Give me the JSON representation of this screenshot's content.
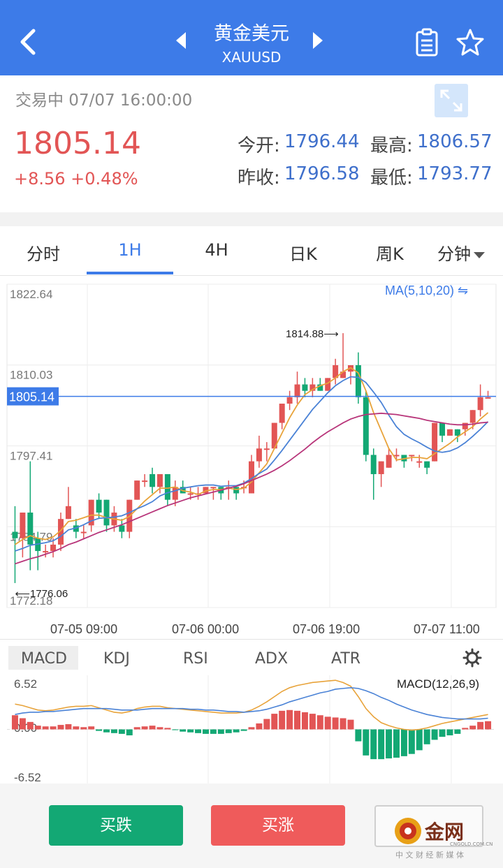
{
  "header": {
    "title": "黄金美元",
    "symbol": "XAUUSD"
  },
  "quote": {
    "status": "交易中 07/07 16:00:00",
    "price": "1805.14",
    "change": "+8.56 +0.48%",
    "open_label": "今开:",
    "open": "1796.44",
    "high_label": "最高:",
    "high": "1806.57",
    "prev_label": "昨收:",
    "prev": "1796.58",
    "low_label": "最低:",
    "low": "1793.77"
  },
  "tabs": [
    "分时",
    "1H",
    "4H",
    "日K",
    "周K",
    "分钟"
  ],
  "active_tab": "1H",
  "indicators": [
    "MACD",
    "KDJ",
    "RSI",
    "ADX",
    "ATR"
  ],
  "active_indicator": "MACD",
  "actions": {
    "sell": "买跌",
    "buy": "买涨"
  },
  "logo": {
    "text": "金网",
    "sub": "中 文 财 经 新 媒 体",
    "url": "CNGOLD.COM.CN"
  },
  "colors": {
    "up": "#e25555",
    "down": "#13a874",
    "accent": "#3d7be8",
    "ma5": "#e8a33a",
    "ma10": "#4a82d6",
    "ma20": "#b8357a"
  },
  "chart_data": {
    "type": "candlestick",
    "ma_label": "MA(5,10,20)",
    "price_axis": [
      "1822.64",
      "1810.03",
      "1797.41",
      "1784.79",
      "1772.18"
    ],
    "ylim": [
      1772.18,
      1822.64
    ],
    "last_price": "1805.14",
    "high_marker": "1814.88",
    "low_marker": "1776.06",
    "x_ticks": [
      "07-05 09:00",
      "07-06 00:00",
      "07-06 19:00",
      "07-07 11:00"
    ],
    "candles": [
      [
        1784,
        1783,
        1788,
        1776
      ],
      [
        1783,
        1787,
        1787,
        1780
      ],
      [
        1787,
        1782,
        1795,
        1778
      ],
      [
        1783,
        1781,
        1784,
        1778
      ],
      [
        1781,
        1781,
        1782,
        1780
      ],
      [
        1781,
        1782,
        1783,
        1780
      ],
      [
        1782,
        1786,
        1787,
        1781
      ],
      [
        1786,
        1788,
        1791,
        1786
      ],
      [
        1785,
        1784,
        1786,
        1783
      ],
      [
        1784,
        1784,
        1785,
        1783
      ],
      [
        1785,
        1789,
        1789,
        1784
      ],
      [
        1789,
        1787,
        1790,
        1786
      ],
      [
        1789,
        1785,
        1789,
        1784
      ],
      [
        1785,
        1787,
        1788,
        1784
      ],
      [
        1785,
        1784,
        1786,
        1783
      ],
      [
        1784,
        1789,
        1789,
        1783
      ],
      [
        1789,
        1792,
        1792,
        1789
      ],
      [
        1792,
        1792,
        1793,
        1791
      ],
      [
        1793,
        1791,
        1794,
        1790
      ],
      [
        1791,
        1793,
        1793,
        1790
      ],
      [
        1793,
        1789,
        1793,
        1788
      ],
      [
        1789,
        1791,
        1792,
        1788
      ],
      [
        1791,
        1790,
        1792,
        1790
      ],
      [
        1790,
        1790,
        1791,
        1789
      ],
      [
        1790,
        1790,
        1791,
        1789
      ],
      [
        1790,
        1791,
        1791,
        1790
      ],
      [
        1791,
        1791,
        1791,
        1789
      ],
      [
        1791,
        1790,
        1791,
        1789
      ],
      [
        1791,
        1791,
        1792,
        1789
      ],
      [
        1791,
        1790,
        1791,
        1789
      ],
      [
        1791,
        1791,
        1792,
        1790
      ],
      [
        1790,
        1795,
        1796,
        1790
      ],
      [
        1795,
        1797,
        1799,
        1794
      ],
      [
        1797,
        1797,
        1798,
        1795
      ],
      [
        1797,
        1801,
        1801,
        1797
      ],
      [
        1801,
        1804,
        1804,
        1800
      ],
      [
        1804,
        1805,
        1806,
        1803
      ],
      [
        1805,
        1807,
        1809,
        1804
      ],
      [
        1807,
        1806,
        1808,
        1805
      ],
      [
        1806,
        1807,
        1808,
        1805
      ],
      [
        1807,
        1806,
        1808,
        1806
      ],
      [
        1806,
        1808,
        1808,
        1806
      ],
      [
        1808,
        1810,
        1811,
        1807
      ],
      [
        1808,
        1809,
        1815,
        1808
      ],
      [
        1809,
        1810,
        1810,
        1807
      ],
      [
        1810,
        1805,
        1812,
        1804
      ],
      [
        1805,
        1796,
        1806,
        1795
      ],
      [
        1796,
        1793,
        1797,
        1789
      ],
      [
        1793,
        1795,
        1795,
        1791
      ],
      [
        1794,
        1796,
        1797,
        1794
      ],
      [
        1796,
        1796,
        1797,
        1795
      ],
      [
        1796,
        1795,
        1796,
        1794
      ],
      [
        1796,
        1796,
        1796,
        1795
      ],
      [
        1795,
        1795,
        1796,
        1794
      ],
      [
        1795,
        1794,
        1795,
        1793
      ],
      [
        1795,
        1801,
        1801,
        1795
      ],
      [
        1801,
        1799,
        1801,
        1798
      ],
      [
        1799,
        1800,
        1800,
        1799
      ],
      [
        1800,
        1799,
        1800,
        1798
      ],
      [
        1800,
        1801,
        1801,
        1799
      ],
      [
        1801,
        1803,
        1803,
        1800
      ],
      [
        1803,
        1805,
        1807,
        1802
      ],
      [
        1805,
        1805,
        1806,
        1805
      ]
    ],
    "ma5": [
      1782,
      1782.8,
      1783.4,
      1783,
      1782.8,
      1783.2,
      1784.2,
      1785.6,
      1785.8,
      1786.2,
      1786.6,
      1786.6,
      1786.2,
      1786,
      1785.8,
      1786.4,
      1787.6,
      1788.8,
      1789.8,
      1790.8,
      1790.8,
      1791,
      1790.4,
      1790.2,
      1789.8,
      1790.4,
      1790.6,
      1790.6,
      1790.8,
      1790.6,
      1790.8,
      1791.8,
      1793.2,
      1794.6,
      1797,
      1799.4,
      1801.8,
      1803.8,
      1805.4,
      1806.2,
      1806.8,
      1807.2,
      1808,
      1809,
      1809.6,
      1808.8,
      1806,
      1802.6,
      1799.8,
      1797,
      1795.2,
      1795.4,
      1795.6,
      1795.6,
      1795.4,
      1796.2,
      1797,
      1797.8,
      1798.8,
      1799.6,
      1800.4,
      1801.6,
      1802.6
    ],
    "ma10": [
      1781,
      1781.4,
      1781.9,
      1782.1,
      1782.3,
      1782.6,
      1783.3,
      1784.3,
      1784.6,
      1785.1,
      1785.7,
      1786.1,
      1786.2,
      1786.3,
      1786.5,
      1787,
      1787.6,
      1788.1,
      1788.7,
      1789.6,
      1790.1,
      1790.4,
      1790.8,
      1791,
      1791.2,
      1791.3,
      1791.3,
      1791.1,
      1791.2,
      1791.2,
      1791.6,
      1792.3,
      1793.1,
      1793.8,
      1795.2,
      1796.7,
      1798.3,
      1799.9,
      1801.5,
      1803.1,
      1804.4,
      1805.7,
      1806.8,
      1807.6,
      1808.2,
      1808.1,
      1807.3,
      1805.8,
      1804.2,
      1802.2,
      1800.4,
      1799.2,
      1798.5,
      1797.9,
      1797.2,
      1796.6,
      1796.4,
      1796.6,
      1797.1,
      1797.9,
      1798.9,
      1800,
      1801.2
    ],
    "ma20": [
      1779,
      1779.4,
      1779.8,
      1780.1,
      1780.5,
      1780.9,
      1781.4,
      1782,
      1782.4,
      1782.9,
      1783.4,
      1783.9,
      1784.3,
      1784.7,
      1785.1,
      1785.6,
      1786.1,
      1786.6,
      1787.1,
      1787.6,
      1788.1,
      1788.5,
      1788.9,
      1789.3,
      1789.6,
      1789.9,
      1790.2,
      1790.5,
      1790.8,
      1791.1,
      1791.5,
      1792,
      1792.5,
      1793,
      1793.6,
      1794.3,
      1795.1,
      1796,
      1796.9,
      1797.9,
      1798.8,
      1799.6,
      1800.3,
      1801,
      1801.6,
      1802,
      1802.3,
      1802.4,
      1802.5,
      1802.4,
      1802.3,
      1802.1,
      1801.9,
      1801.7,
      1801.4,
      1801.2,
      1801,
      1800.8,
      1800.7,
      1800.7,
      1800.8,
      1801,
      1801.1
    ]
  },
  "macd_data": {
    "type": "bar",
    "label": "MACD(12,26,9)",
    "axis": [
      "6.52",
      "0.00",
      "-6.52"
    ],
    "ylim": [
      -6.52,
      6.52
    ],
    "hist": [
      1.9,
      1.5,
      1.0,
      0.5,
      0.4,
      0.4,
      0.6,
      0.7,
      0.4,
      0.3,
      0.4,
      -0.2,
      -0.4,
      -0.5,
      -0.6,
      -0.8,
      0.3,
      0.4,
      0.5,
      0.3,
      0.2,
      -0.1,
      -0.3,
      -0.4,
      -0.5,
      -0.6,
      -0.6,
      -0.6,
      -0.5,
      -0.4,
      -0.2,
      0.3,
      0.8,
      1.4,
      2.1,
      2.5,
      2.6,
      2.5,
      2.3,
      2.1,
      1.9,
      1.7,
      1.6,
      1.5,
      1.3,
      -1.6,
      -3.5,
      -4.0,
      -4.0,
      -3.9,
      -3.8,
      -3.6,
      -3.3,
      -2.8,
      -2.0,
      -1.4,
      -1.0,
      -0.8,
      -0.6,
      0.2,
      0.5,
      1.0,
      1.1
    ],
    "dif": [
      3.4,
      3.2,
      2.9,
      2.6,
      2.5,
      2.6,
      2.8,
      3.0,
      3.1,
      3.1,
      3.2,
      2.9,
      2.6,
      2.3,
      2.2,
      2.4,
      2.8,
      3.0,
      3.1,
      3.1,
      2.9,
      2.8,
      2.7,
      2.6,
      2.5,
      2.4,
      2.3,
      2.2,
      2.2,
      2.2,
      2.3,
      2.6,
      3.1,
      3.7,
      4.4,
      5.1,
      5.6,
      5.9,
      6.1,
      6.3,
      6.4,
      6.5,
      6.6,
      6.3,
      5.8,
      4.4,
      2.8,
      1.7,
      0.9,
      0.5,
      0.2,
      0.0,
      -0.1,
      0.0,
      0.2,
      0.5,
      0.8,
      1.0,
      1.2,
      1.4,
      1.6,
      1.8,
      2.0
    ],
    "dea": [
      2.0,
      2.2,
      2.3,
      2.3,
      2.4,
      2.4,
      2.5,
      2.6,
      2.7,
      2.8,
      2.8,
      2.8,
      2.8,
      2.7,
      2.6,
      2.6,
      2.6,
      2.7,
      2.8,
      2.8,
      2.8,
      2.8,
      2.8,
      2.7,
      2.7,
      2.6,
      2.6,
      2.5,
      2.4,
      2.4,
      2.3,
      2.4,
      2.5,
      2.7,
      3.0,
      3.3,
      3.7,
      4.0,
      4.3,
      4.6,
      4.9,
      5.1,
      5.4,
      5.5,
      5.6,
      5.5,
      5.2,
      4.8,
      4.3,
      3.9,
      3.4,
      3.0,
      2.6,
      2.3,
      2.0,
      1.8,
      1.6,
      1.5,
      1.4,
      1.4,
      1.4,
      1.4,
      1.5
    ]
  }
}
